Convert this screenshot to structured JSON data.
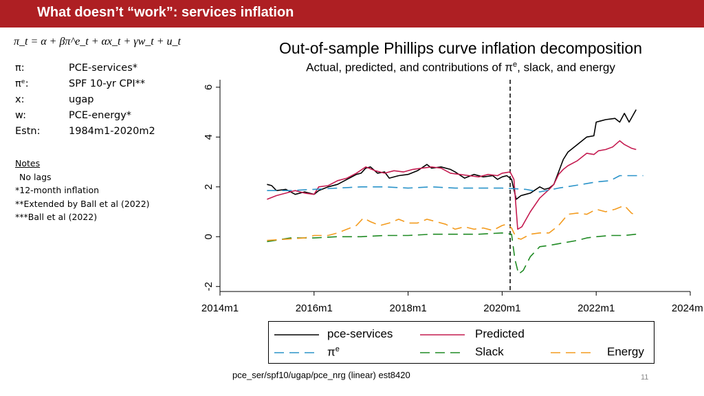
{
  "slide": {
    "title": "What doesn’t “work”: services inflation",
    "page_number": "11",
    "footer": "pce_ser/spf10/ugap/pce_nrg (linear) est8420"
  },
  "equation": "π_t = α + βπ^e_t + αx_t + γw_t + u_t",
  "definitions": [
    {
      "symbol": "π:",
      "value": "PCE-services*"
    },
    {
      "symbol": "πᵉ:",
      "value": "SPF 10-yr CPI**"
    },
    {
      "symbol": "x:",
      "value": "ugap"
    },
    {
      "symbol": "w:",
      "value": "PCE-energy*"
    },
    {
      "symbol": "Estn:",
      "value": "1984m1-2020m2"
    }
  ],
  "notes": {
    "title": "Notes",
    "lines": [
      "No lags",
      "*12-month inflation",
      "**Extended by Ball et al (2022)",
      "***Ball et al (2022)"
    ]
  },
  "chart_data": {
    "type": "line",
    "title": "Out-of-sample Phillips curve inflation decomposition",
    "subtitle": "Actual, predicted, and contributions of π",
    "subtitle_sup": "e",
    "subtitle_rest": ", slack, and energy",
    "xlim": [
      2014,
      2024
    ],
    "ylim": [
      -2.2,
      6.3
    ],
    "x_ticks": [
      2014,
      2016,
      2018,
      2020,
      2022,
      2024
    ],
    "x_tick_labels": [
      "2014m1",
      "2016m1",
      "2018m1",
      "2020m1",
      "2022m1",
      "2024m1"
    ],
    "y_ticks": [
      -2,
      0,
      2,
      4,
      6
    ],
    "y_tick_labels": [
      "-2",
      "0",
      "2",
      "4",
      "6"
    ],
    "vertical_line_x": 2020.17,
    "series": [
      {
        "name": "pce-services",
        "color": "#000000",
        "dash": "",
        "points": [
          [
            2015.0,
            2.1
          ],
          [
            2015.1,
            2.05
          ],
          [
            2015.2,
            1.85
          ],
          [
            2015.4,
            1.9
          ],
          [
            2015.6,
            1.7
          ],
          [
            2015.8,
            1.8
          ],
          [
            2016.0,
            1.7
          ],
          [
            2016.1,
            1.85
          ],
          [
            2016.3,
            2.0
          ],
          [
            2016.5,
            2.1
          ],
          [
            2016.7,
            2.3
          ],
          [
            2016.9,
            2.5
          ],
          [
            2017.0,
            2.55
          ],
          [
            2017.1,
            2.75
          ],
          [
            2017.2,
            2.8
          ],
          [
            2017.35,
            2.55
          ],
          [
            2017.5,
            2.6
          ],
          [
            2017.6,
            2.35
          ],
          [
            2017.8,
            2.45
          ],
          [
            2018.0,
            2.5
          ],
          [
            2018.2,
            2.65
          ],
          [
            2018.4,
            2.9
          ],
          [
            2018.5,
            2.75
          ],
          [
            2018.7,
            2.8
          ],
          [
            2018.9,
            2.7
          ],
          [
            2019.0,
            2.6
          ],
          [
            2019.2,
            2.35
          ],
          [
            2019.4,
            2.5
          ],
          [
            2019.6,
            2.4
          ],
          [
            2019.8,
            2.45
          ],
          [
            2019.9,
            2.3
          ],
          [
            2020.0,
            2.4
          ],
          [
            2020.1,
            2.45
          ],
          [
            2020.2,
            2.3
          ],
          [
            2020.3,
            1.5
          ],
          [
            2020.4,
            1.65
          ],
          [
            2020.6,
            1.75
          ],
          [
            2020.8,
            2.0
          ],
          [
            2020.9,
            1.9
          ],
          [
            2021.0,
            1.95
          ],
          [
            2021.1,
            2.1
          ],
          [
            2021.2,
            2.6
          ],
          [
            2021.3,
            3.1
          ],
          [
            2021.4,
            3.4
          ],
          [
            2021.6,
            3.7
          ],
          [
            2021.8,
            4.0
          ],
          [
            2021.95,
            4.05
          ],
          [
            2022.0,
            4.6
          ],
          [
            2022.1,
            4.65
          ],
          [
            2022.2,
            4.7
          ],
          [
            2022.4,
            4.75
          ],
          [
            2022.5,
            4.6
          ],
          [
            2022.6,
            4.95
          ],
          [
            2022.7,
            4.6
          ],
          [
            2022.85,
            5.1
          ]
        ]
      },
      {
        "name": "Predicted",
        "color": "#c41a4f",
        "dash": "",
        "points": [
          [
            2015.0,
            1.5
          ],
          [
            2015.2,
            1.65
          ],
          [
            2015.4,
            1.75
          ],
          [
            2015.6,
            1.85
          ],
          [
            2015.8,
            1.75
          ],
          [
            2016.0,
            1.7
          ],
          [
            2016.1,
            2.0
          ],
          [
            2016.3,
            2.05
          ],
          [
            2016.5,
            2.25
          ],
          [
            2016.7,
            2.35
          ],
          [
            2016.9,
            2.55
          ],
          [
            2017.1,
            2.8
          ],
          [
            2017.3,
            2.65
          ],
          [
            2017.5,
            2.55
          ],
          [
            2017.7,
            2.65
          ],
          [
            2017.9,
            2.6
          ],
          [
            2018.1,
            2.7
          ],
          [
            2018.3,
            2.75
          ],
          [
            2018.5,
            2.8
          ],
          [
            2018.7,
            2.75
          ],
          [
            2018.9,
            2.55
          ],
          [
            2019.1,
            2.5
          ],
          [
            2019.3,
            2.45
          ],
          [
            2019.5,
            2.4
          ],
          [
            2019.7,
            2.5
          ],
          [
            2019.9,
            2.45
          ],
          [
            2020.0,
            2.55
          ],
          [
            2020.17,
            2.6
          ],
          [
            2020.25,
            2.3
          ],
          [
            2020.33,
            0.3
          ],
          [
            2020.42,
            0.4
          ],
          [
            2020.6,
            1.0
          ],
          [
            2020.8,
            1.55
          ],
          [
            2021.0,
            1.9
          ],
          [
            2021.1,
            2.1
          ],
          [
            2021.2,
            2.5
          ],
          [
            2021.3,
            2.7
          ],
          [
            2021.4,
            2.85
          ],
          [
            2021.6,
            3.05
          ],
          [
            2021.8,
            3.35
          ],
          [
            2021.95,
            3.3
          ],
          [
            2022.05,
            3.45
          ],
          [
            2022.2,
            3.5
          ],
          [
            2022.35,
            3.6
          ],
          [
            2022.5,
            3.85
          ],
          [
            2022.6,
            3.7
          ],
          [
            2022.75,
            3.55
          ],
          [
            2022.85,
            3.5
          ]
        ]
      },
      {
        "name": "πᵉ",
        "color": "#2a93c9",
        "dash": "14,8",
        "points": [
          [
            2015.0,
            1.85
          ],
          [
            2015.5,
            1.85
          ],
          [
            2016.0,
            1.9
          ],
          [
            2016.5,
            1.95
          ],
          [
            2017.0,
            2.0
          ],
          [
            2017.5,
            2.0
          ],
          [
            2018.0,
            1.95
          ],
          [
            2018.5,
            2.0
          ],
          [
            2019.0,
            1.95
          ],
          [
            2019.5,
            1.95
          ],
          [
            2020.0,
            1.95
          ],
          [
            2020.5,
            1.9
          ],
          [
            2020.8,
            1.8
          ],
          [
            2021.2,
            1.95
          ],
          [
            2021.7,
            2.1
          ],
          [
            2022.0,
            2.2
          ],
          [
            2022.3,
            2.25
          ],
          [
            2022.5,
            2.45
          ],
          [
            2023.0,
            2.45
          ]
        ]
      },
      {
        "name": "Slack",
        "color": "#1f8a23",
        "dash": "14,8",
        "points": [
          [
            2015.0,
            -0.2
          ],
          [
            2015.5,
            -0.05
          ],
          [
            2016.0,
            -0.05
          ],
          [
            2016.5,
            0.0
          ],
          [
            2017.0,
            0.0
          ],
          [
            2017.5,
            0.05
          ],
          [
            2018.0,
            0.05
          ],
          [
            2018.5,
            0.1
          ],
          [
            2019.0,
            0.1
          ],
          [
            2019.5,
            0.1
          ],
          [
            2020.0,
            0.15
          ],
          [
            2020.2,
            0.1
          ],
          [
            2020.27,
            -0.9
          ],
          [
            2020.35,
            -1.5
          ],
          [
            2020.45,
            -1.35
          ],
          [
            2020.6,
            -0.8
          ],
          [
            2020.8,
            -0.4
          ],
          [
            2021.0,
            -0.35
          ],
          [
            2021.3,
            -0.25
          ],
          [
            2021.6,
            -0.15
          ],
          [
            2021.8,
            -0.05
          ],
          [
            2022.0,
            0.0
          ],
          [
            2022.3,
            0.05
          ],
          [
            2022.6,
            0.05
          ],
          [
            2022.85,
            0.1
          ]
        ]
      },
      {
        "name": "Energy",
        "color": "#f39b1e",
        "dash": "14,8",
        "points": [
          [
            2015.0,
            -0.15
          ],
          [
            2015.4,
            -0.1
          ],
          [
            2015.8,
            -0.05
          ],
          [
            2016.0,
            0.05
          ],
          [
            2016.3,
            0.05
          ],
          [
            2016.5,
            0.15
          ],
          [
            2016.7,
            0.3
          ],
          [
            2016.9,
            0.45
          ],
          [
            2017.05,
            0.75
          ],
          [
            2017.2,
            0.6
          ],
          [
            2017.4,
            0.45
          ],
          [
            2017.6,
            0.55
          ],
          [
            2017.8,
            0.7
          ],
          [
            2018.0,
            0.55
          ],
          [
            2018.2,
            0.55
          ],
          [
            2018.4,
            0.7
          ],
          [
            2018.6,
            0.6
          ],
          [
            2018.8,
            0.5
          ],
          [
            2019.0,
            0.3
          ],
          [
            2019.2,
            0.4
          ],
          [
            2019.4,
            0.3
          ],
          [
            2019.6,
            0.35
          ],
          [
            2019.8,
            0.25
          ],
          [
            2020.0,
            0.45
          ],
          [
            2020.1,
            0.5
          ],
          [
            2020.2,
            0.35
          ],
          [
            2020.3,
            -0.05
          ],
          [
            2020.4,
            -0.1
          ],
          [
            2020.6,
            0.1
          ],
          [
            2020.8,
            0.15
          ],
          [
            2021.0,
            0.15
          ],
          [
            2021.2,
            0.45
          ],
          [
            2021.4,
            0.9
          ],
          [
            2021.6,
            0.95
          ],
          [
            2021.8,
            0.9
          ],
          [
            2022.0,
            1.1
          ],
          [
            2022.2,
            1.0
          ],
          [
            2022.4,
            1.1
          ],
          [
            2022.6,
            1.25
          ],
          [
            2022.75,
            0.95
          ],
          [
            2022.85,
            0.85
          ]
        ]
      }
    ]
  },
  "legend": {
    "pce_services": "pce-services",
    "predicted": "Predicted",
    "pie": "π",
    "pie_sup": "e",
    "slack": "Slack",
    "energy": "Energy"
  }
}
